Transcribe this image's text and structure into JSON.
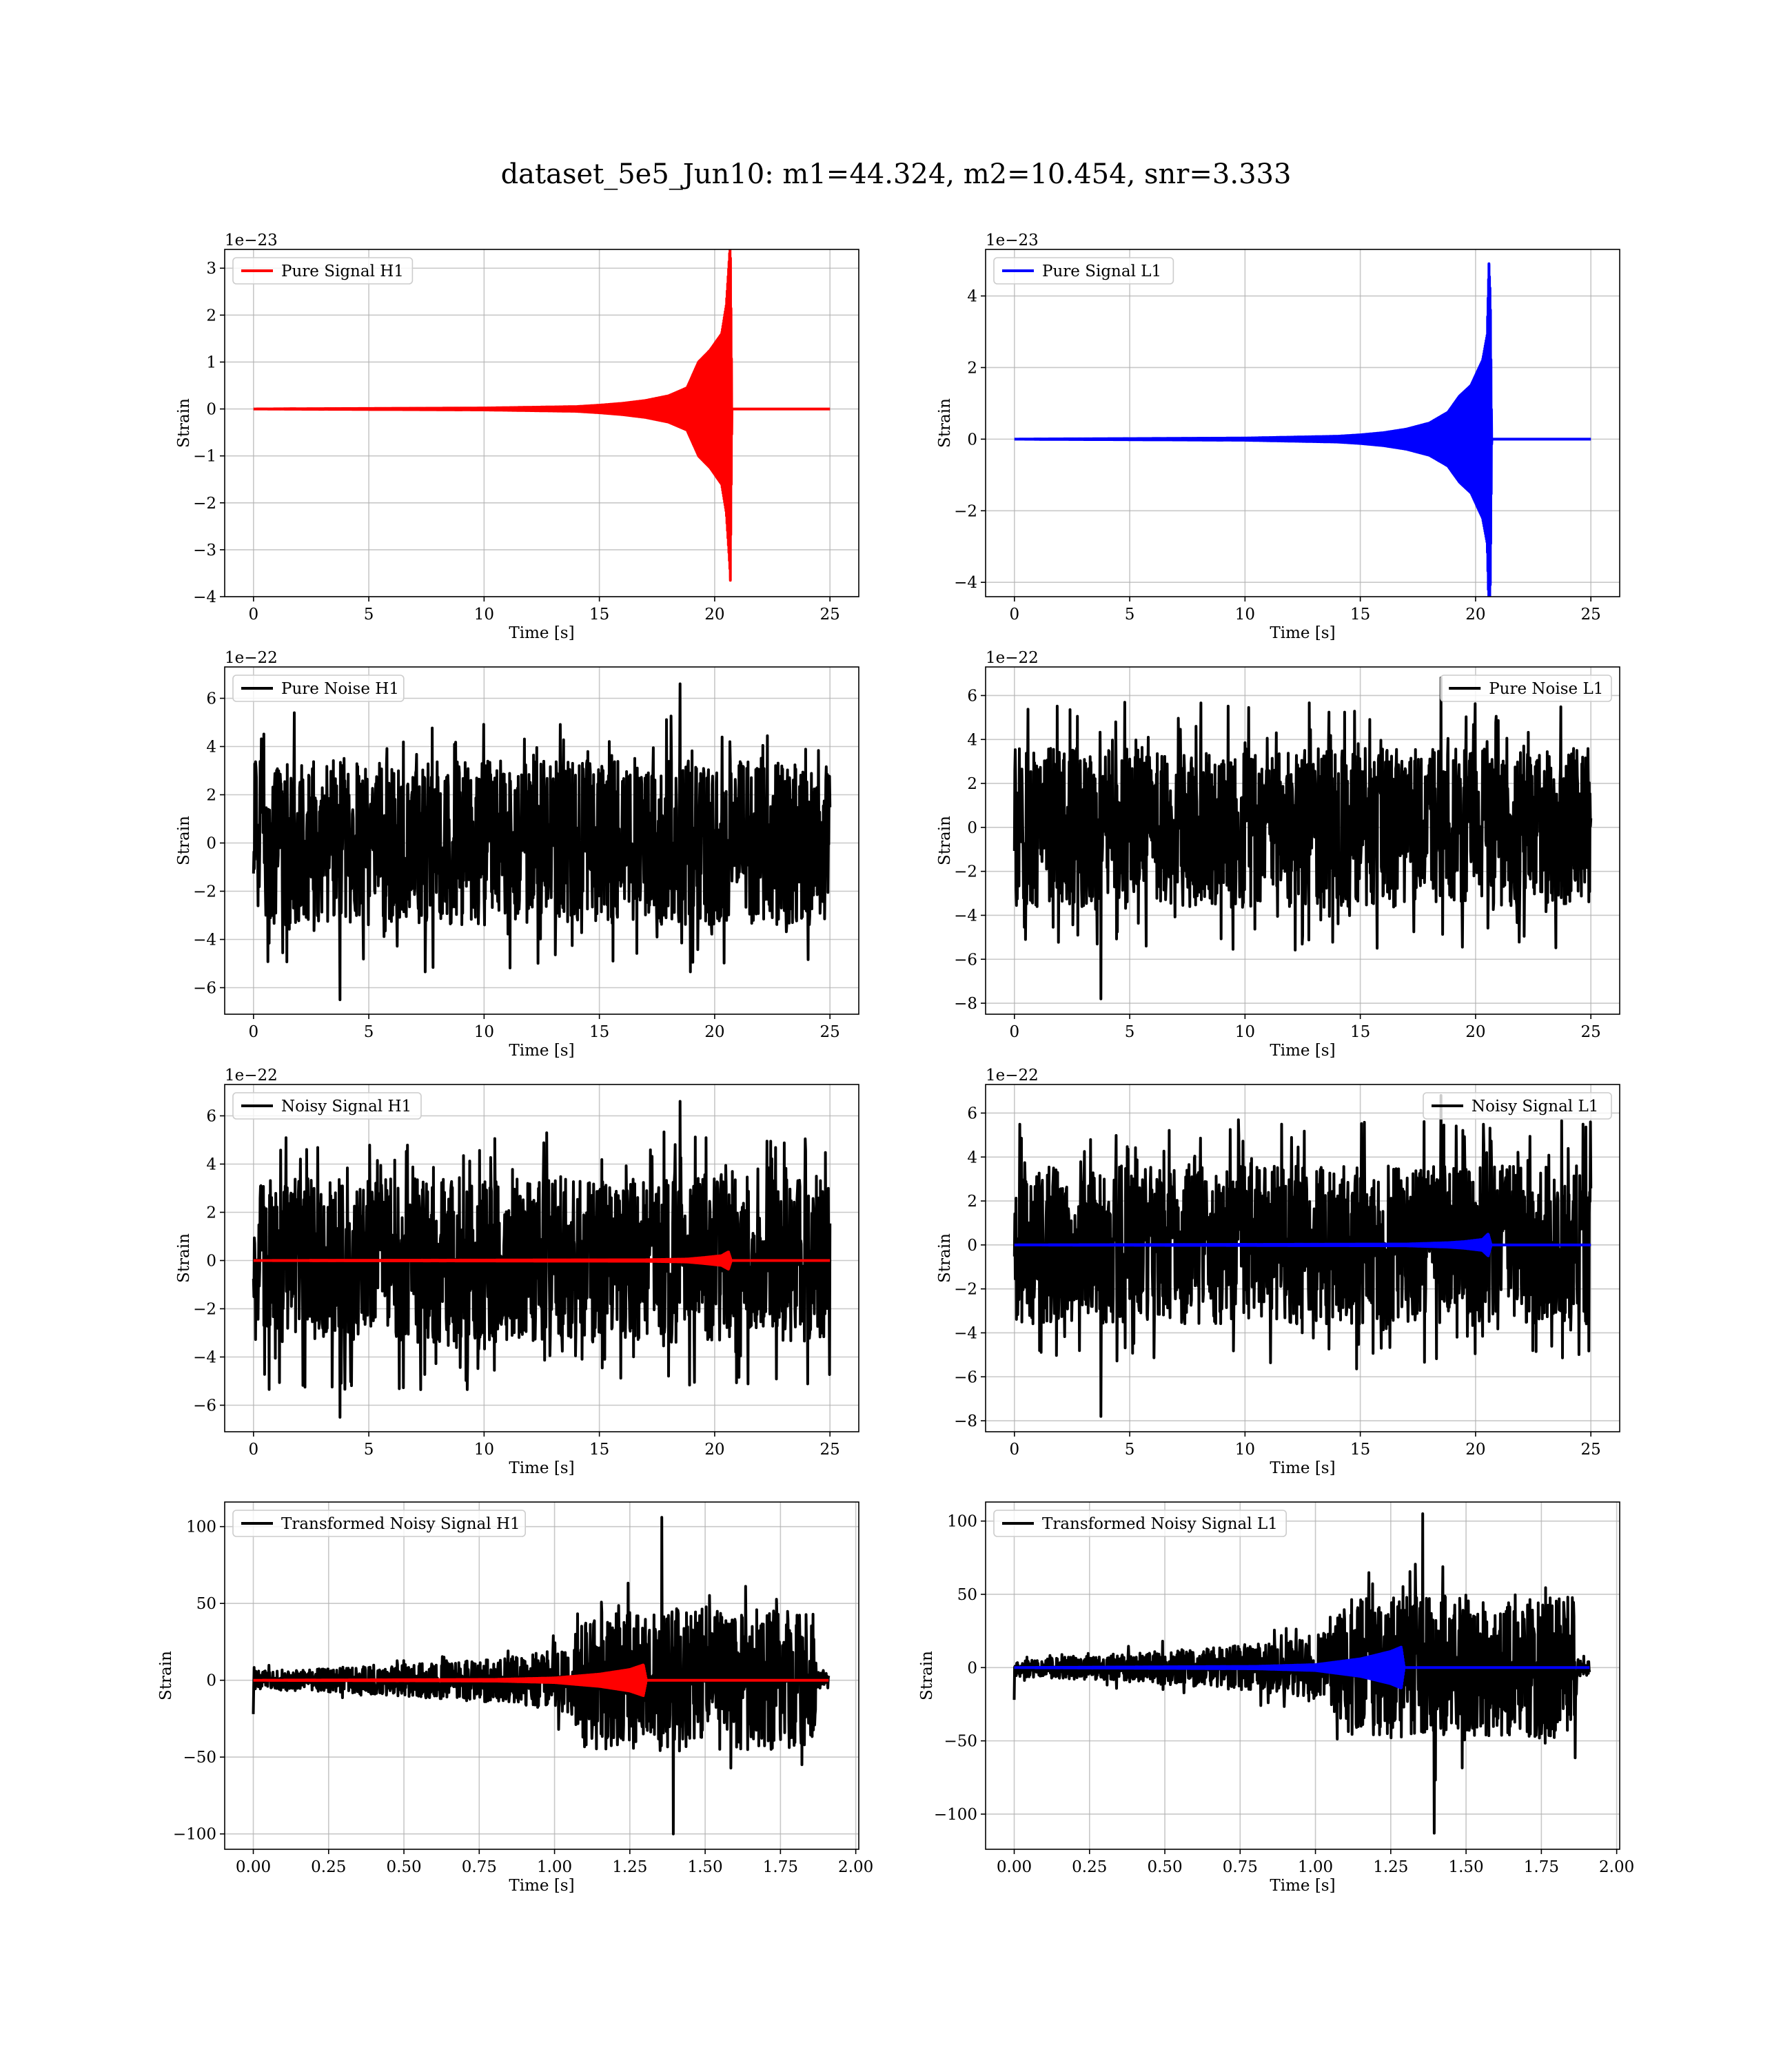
{
  "figure": {
    "title": "dataset_5e5_Jun10: m1=44.324, m2=10.454, snr=3.333"
  },
  "chart_data": [
    {
      "id": "pure-signal-h1",
      "type": "line",
      "xlabel": "Time [s]",
      "ylabel": "Strain",
      "offset_text": "1e−23",
      "xlim": [
        -1.25,
        26.25
      ],
      "ylim": [
        -4.0,
        3.4
      ],
      "xticks": [
        0,
        5,
        10,
        15,
        20,
        25
      ],
      "xtick_labels": [
        "0",
        "5",
        "10",
        "15",
        "20",
        "25"
      ],
      "yticks": [
        -4,
        -3,
        -2,
        -1,
        0,
        1,
        2,
        3
      ],
      "ytick_labels": [
        "−4",
        "−3",
        "−2",
        "−1",
        "0",
        "1",
        "2",
        "3"
      ],
      "grid": true,
      "legend": "upper left",
      "series": [
        {
          "name": "Pure Signal H1",
          "color": "#ff0000",
          "kind": "chirp",
          "x_start": 0,
          "x_end": 25,
          "merger_time": 20.65,
          "envelope": [
            [
              0,
              0.0
            ],
            [
              10,
              0.02
            ],
            [
              14,
              0.05
            ],
            [
              15,
              0.08
            ],
            [
              16,
              0.12
            ],
            [
              17,
              0.18
            ],
            [
              18,
              0.28
            ],
            [
              18.8,
              0.45
            ],
            [
              19.3,
              1.0
            ],
            [
              19.8,
              1.25
            ],
            [
              20.3,
              1.6
            ],
            [
              20.5,
              2.2
            ],
            [
              20.62,
              3.1
            ],
            [
              20.68,
              3.6
            ],
            [
              20.75,
              0.0
            ],
            [
              25,
              0.0
            ]
          ],
          "top_values": [
            [
              20.62,
              3.1
            ]
          ],
          "bottom_values": [
            [
              20.68,
              -3.65
            ]
          ]
        }
      ]
    },
    {
      "id": "pure-signal-l1",
      "type": "line",
      "xlabel": "Time [s]",
      "ylabel": "Strain",
      "offset_text": "1e−23",
      "xlim": [
        -1.25,
        26.25
      ],
      "ylim": [
        -4.4,
        5.3
      ],
      "xticks": [
        0,
        5,
        10,
        15,
        20,
        25
      ],
      "xtick_labels": [
        "0",
        "5",
        "10",
        "15",
        "20",
        "25"
      ],
      "yticks": [
        -4,
        -2,
        0,
        2,
        4
      ],
      "ytick_labels": [
        "−4",
        "−2",
        "0",
        "2",
        "4"
      ],
      "grid": true,
      "legend": "upper left",
      "series": [
        {
          "name": "Pure Signal L1",
          "color": "#0000ff",
          "kind": "chirp",
          "x_start": 0,
          "x_end": 25,
          "merger_time": 20.6,
          "envelope": [
            [
              0,
              0.0
            ],
            [
              10,
              0.03
            ],
            [
              14,
              0.08
            ],
            [
              15,
              0.12
            ],
            [
              16,
              0.18
            ],
            [
              17,
              0.28
            ],
            [
              18,
              0.45
            ],
            [
              18.8,
              0.75
            ],
            [
              19.3,
              1.2
            ],
            [
              19.8,
              1.5
            ],
            [
              20.3,
              2.2
            ],
            [
              20.5,
              2.9
            ],
            [
              20.58,
              4.9
            ],
            [
              20.64,
              4.0
            ],
            [
              20.7,
              0.0
            ],
            [
              25,
              0.0
            ]
          ],
          "top_values": [
            [
              20.58,
              4.9
            ]
          ],
          "bottom_values": [
            [
              20.64,
              -4.0
            ]
          ]
        }
      ]
    },
    {
      "id": "pure-noise-h1",
      "type": "line",
      "xlabel": "Time [s]",
      "ylabel": "Strain",
      "offset_text": "1e−22",
      "xlim": [
        -1.25,
        26.25
      ],
      "ylim": [
        -7.1,
        7.3
      ],
      "xticks": [
        0,
        5,
        10,
        15,
        20,
        25
      ],
      "xtick_labels": [
        "0",
        "5",
        "10",
        "15",
        "20",
        "25"
      ],
      "yticks": [
        -6,
        -4,
        -2,
        0,
        2,
        4,
        6
      ],
      "ytick_labels": [
        "−6",
        "−4",
        "−2",
        "0",
        "2",
        "4",
        "6"
      ],
      "grid": true,
      "legend": "upper left",
      "series": [
        {
          "name": "Pure Noise H1",
          "color": "#000000",
          "kind": "noise",
          "x_start": 0,
          "x_end": 25,
          "core": 3.4,
          "tail": 2.0,
          "max": 6.6,
          "min": -6.5
        }
      ]
    },
    {
      "id": "pure-noise-l1",
      "type": "line",
      "xlabel": "Time [s]",
      "ylabel": "Strain",
      "offset_text": "1e−22",
      "xlim": [
        -1.25,
        26.25
      ],
      "ylim": [
        -8.5,
        7.3
      ],
      "xticks": [
        0,
        5,
        10,
        15,
        20,
        25
      ],
      "xtick_labels": [
        "0",
        "5",
        "10",
        "15",
        "20",
        "25"
      ],
      "yticks": [
        -8,
        -6,
        -4,
        -2,
        0,
        2,
        4,
        6
      ],
      "ytick_labels": [
        "−8",
        "−6",
        "−4",
        "−2",
        "0",
        "2",
        "4",
        "6"
      ],
      "grid": true,
      "legend": "upper right",
      "series": [
        {
          "name": "Pure Noise L1",
          "color": "#000000",
          "kind": "noise",
          "x_start": 0,
          "x_end": 25,
          "core": 3.6,
          "tail": 2.1,
          "max": 6.8,
          "min": -7.8
        }
      ]
    },
    {
      "id": "noisy-signal-h1",
      "type": "line",
      "xlabel": "Time [s]",
      "ylabel": "Strain",
      "offset_text": "1e−22",
      "xlim": [
        -1.25,
        26.25
      ],
      "ylim": [
        -7.1,
        7.3
      ],
      "xticks": [
        0,
        5,
        10,
        15,
        20,
        25
      ],
      "xtick_labels": [
        "0",
        "5",
        "10",
        "15",
        "20",
        "25"
      ],
      "yticks": [
        -6,
        -4,
        -2,
        0,
        2,
        4,
        6
      ],
      "ytick_labels": [
        "−6",
        "−4",
        "−2",
        "0",
        "2",
        "4",
        "6"
      ],
      "grid": true,
      "legend": "upper left",
      "series": [
        {
          "name": "Noisy Signal H1",
          "color": "#000000",
          "kind": "noise",
          "x_start": 0,
          "x_end": 25,
          "core": 3.4,
          "tail": 2.0,
          "max": 6.6,
          "min": -6.5
        },
        {
          "name": "",
          "color": "#ff0000",
          "kind": "chirp",
          "x_start": 0,
          "x_end": 25,
          "merger_time": 20.65,
          "envelope": [
            [
              0,
              0.0
            ],
            [
              17,
              0.03
            ],
            [
              18.8,
              0.06
            ],
            [
              19.5,
              0.12
            ],
            [
              20.3,
              0.2
            ],
            [
              20.6,
              0.36
            ],
            [
              20.72,
              0.0
            ],
            [
              25,
              0.0
            ]
          ]
        }
      ]
    },
    {
      "id": "noisy-signal-l1",
      "type": "line",
      "xlabel": "Time [s]",
      "ylabel": "Strain",
      "offset_text": "1e−22",
      "xlim": [
        -1.25,
        26.25
      ],
      "ylim": [
        -8.5,
        7.3
      ],
      "xticks": [
        0,
        5,
        10,
        15,
        20,
        25
      ],
      "xtick_labels": [
        "0",
        "5",
        "10",
        "15",
        "20",
        "25"
      ],
      "yticks": [
        -8,
        -6,
        -4,
        -2,
        0,
        2,
        4,
        6
      ],
      "ytick_labels": [
        "−8",
        "−6",
        "−4",
        "−2",
        "0",
        "2",
        "4",
        "6"
      ],
      "grid": true,
      "legend": "upper right",
      "series": [
        {
          "name": "Noisy Signal L1",
          "color": "#000000",
          "kind": "noise",
          "x_start": 0,
          "x_end": 25,
          "core": 3.6,
          "tail": 2.1,
          "max": 6.8,
          "min": -7.8
        },
        {
          "name": "",
          "color": "#0000ff",
          "kind": "chirp",
          "x_start": 0,
          "x_end": 25,
          "merger_time": 20.6,
          "envelope": [
            [
              0,
              0.0
            ],
            [
              17,
              0.04
            ],
            [
              18.8,
              0.1
            ],
            [
              19.5,
              0.15
            ],
            [
              20.3,
              0.25
            ],
            [
              20.55,
              0.5
            ],
            [
              20.68,
              0.0
            ],
            [
              25,
              0.0
            ]
          ]
        }
      ]
    },
    {
      "id": "transformed-noisy-signal-h1",
      "type": "line",
      "xlabel": "Time [s]",
      "ylabel": "Strain",
      "offset_text": "",
      "xlim": [
        -0.095,
        2.01
      ],
      "ylim": [
        -110,
        116
      ],
      "xticks": [
        0.0,
        0.25,
        0.5,
        0.75,
        1.0,
        1.25,
        1.5,
        1.75,
        2.0
      ],
      "xtick_labels": [
        "0.00",
        "0.25",
        "0.50",
        "0.75",
        "1.00",
        "1.25",
        "1.50",
        "1.75",
        "2.00"
      ],
      "yticks": [
        -100,
        -50,
        0,
        50,
        100
      ],
      "ytick_labels": [
        "−100",
        "−50",
        "0",
        "50",
        "100"
      ],
      "grid": true,
      "legend": "upper left",
      "series": [
        {
          "name": "Transformed Noisy Signal H1",
          "color": "#000000",
          "kind": "whitened",
          "x_start": 0,
          "x_end": 1.91,
          "envelope": [
            [
              0,
              6
            ],
            [
              0.3,
              8
            ],
            [
              0.6,
              12
            ],
            [
              0.9,
              16
            ],
            [
              1.05,
              22
            ],
            [
              1.1,
              45
            ],
            [
              1.3,
              45
            ],
            [
              1.5,
              48
            ],
            [
              1.8,
              45
            ],
            [
              1.86,
              45
            ],
            [
              1.87,
              6
            ],
            [
              1.91,
              5
            ]
          ],
          "max": 106,
          "min": -100
        },
        {
          "name": "",
          "color": "#ff0000",
          "kind": "chirp",
          "x_start": 0,
          "x_end": 1.91,
          "merger_time": 1.3,
          "envelope": [
            [
              0,
              0
            ],
            [
              0.8,
              0.5
            ],
            [
              1.0,
              1.5
            ],
            [
              1.15,
              4
            ],
            [
              1.25,
              7
            ],
            [
              1.295,
              10
            ],
            [
              1.305,
              0
            ],
            [
              1.91,
              0
            ]
          ]
        }
      ]
    },
    {
      "id": "transformed-noisy-signal-l1",
      "type": "line",
      "xlabel": "Time [s]",
      "ylabel": "Strain",
      "offset_text": "",
      "xlim": [
        -0.095,
        2.01
      ],
      "ylim": [
        -124,
        113
      ],
      "xticks": [
        0.0,
        0.25,
        0.5,
        0.75,
        1.0,
        1.25,
        1.5,
        1.75,
        2.0
      ],
      "xtick_labels": [
        "0.00",
        "0.25",
        "0.50",
        "0.75",
        "1.00",
        "1.25",
        "1.50",
        "1.75",
        "2.00"
      ],
      "yticks": [
        -100,
        -50,
        0,
        50,
        100
      ],
      "ytick_labels": [
        "−100",
        "−50",
        "0",
        "50",
        "100"
      ],
      "grid": true,
      "legend": "upper left",
      "series": [
        {
          "name": "Transformed Noisy Signal L1",
          "color": "#000000",
          "kind": "whitened",
          "x_start": 0,
          "x_end": 1.91,
          "envelope": [
            [
              0,
              6
            ],
            [
              0.3,
              9
            ],
            [
              0.6,
              13
            ],
            [
              0.9,
              18
            ],
            [
              1.05,
              25
            ],
            [
              1.1,
              48
            ],
            [
              1.3,
              48
            ],
            [
              1.5,
              50
            ],
            [
              1.8,
              48
            ],
            [
              1.86,
              48
            ],
            [
              1.87,
              6
            ],
            [
              1.91,
              5
            ]
          ],
          "max": 105,
          "min": -113
        },
        {
          "name": "",
          "color": "#0000ff",
          "kind": "chirp",
          "x_start": 0,
          "x_end": 1.91,
          "merger_time": 1.29,
          "envelope": [
            [
              0,
              0
            ],
            [
              0.8,
              0.8
            ],
            [
              1.0,
              2
            ],
            [
              1.15,
              6
            ],
            [
              1.25,
              11
            ],
            [
              1.285,
              14
            ],
            [
              1.295,
              0
            ],
            [
              1.91,
              0
            ]
          ]
        }
      ]
    }
  ]
}
